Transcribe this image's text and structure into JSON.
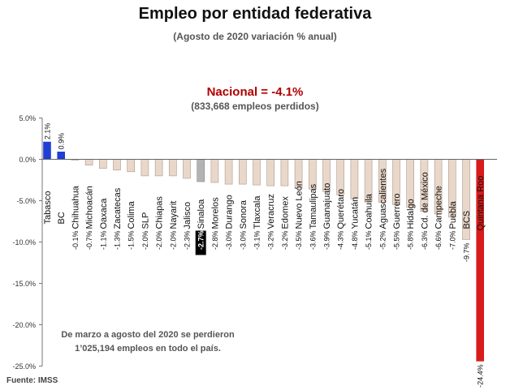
{
  "title": "Empleo por entidad federativa",
  "subtitle": "(Agosto de 2020 variación % anual)",
  "national_label": "Nacional = -4.1%",
  "national_sub": "(833,668 empleos perdidos)",
  "annotation": [
    "De marzo a agosto del 2020 se perdieron",
    "1’025,194 empleos en todo el país."
  ],
  "source": "Fuente: IMSS",
  "colors": {
    "positive": "#1f3fd6",
    "negative": "#d81b1b",
    "neutral_bar": "#e9d7c9",
    "neutral_edge": "#a89a90",
    "highlight": "#b3b3b3",
    "national": "#b00000"
  },
  "chart_data": {
    "type": "bar",
    "title": "Empleo por entidad federativa",
    "subtitle": "(Agosto de 2020 variación % anual)",
    "ylim": [
      -25,
      5
    ],
    "yticks": [
      5,
      0,
      -5,
      -10,
      -15,
      -20,
      -25
    ],
    "ytick_labels": [
      "5.0%",
      "0.0%",
      "-5.0%",
      "-10.0%",
      "-15.0%",
      "-20.0%",
      "-25.0%"
    ],
    "categories": [
      "Tabasco",
      "BC",
      "Chihuahua",
      "Michoacán",
      "Oaxaca",
      "Zacatecas",
      "Colima",
      "SLP",
      "Chiapas",
      "Nayarit",
      "Jalisco",
      "Sinaloa",
      "Morelos",
      "Durango",
      "Sonora",
      "Tlaxcala",
      "Veracruz",
      "Edomex",
      "Nuevo León",
      "Tamaulipas",
      "Guanajuato",
      "Querétaro",
      "Yucatán",
      "Coahuila",
      "Aguascalientes",
      "Guerrero",
      "Hidalgo",
      "Cd. de México",
      "Campeche",
      "Puebla",
      "BCS",
      "Quintana Roo"
    ],
    "values": [
      2.1,
      0.9,
      -0.1,
      -0.7,
      -1.1,
      -1.3,
      -1.5,
      -2.0,
      -2.0,
      -2.0,
      -2.3,
      -2.7,
      -2.8,
      -3.0,
      -3.0,
      -3.1,
      -3.2,
      -3.2,
      -3.5,
      -3.6,
      -3.9,
      -4.3,
      -4.8,
      -5.1,
      -5.2,
      -5.5,
      -5.8,
      -6.3,
      -6.6,
      -7.0,
      -9.7,
      -24.4
    ],
    "value_labels": [
      "2.1%",
      "0.9%",
      "-0.1%",
      "-0.7%",
      "-1.1%",
      "-1.3%",
      "-1.5%",
      "-2.0%",
      "-2.0%",
      "-2.0%",
      "-2.3%",
      "-2.7%",
      "-2.8%",
      "-3.0%",
      "-3.0%",
      "-3.1%",
      "-3.2%",
      "-3.2%",
      "-3.5%",
      "-3.6%",
      "-3.9%",
      "-4.3%",
      "-4.8%",
      "-5.1%",
      "-5.2%",
      "-5.5%",
      "-5.8%",
      "-6.3%",
      "-6.6%",
      "-7.0%",
      "-9.7%",
      "-24.4%"
    ],
    "highlight_category": "Sinaloa",
    "grid": false,
    "legend": "none"
  }
}
